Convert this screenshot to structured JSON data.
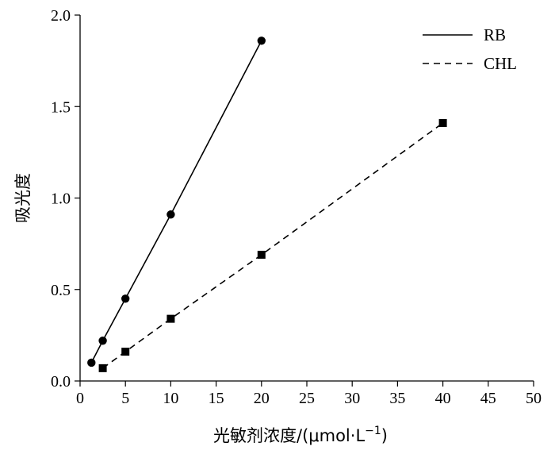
{
  "chart_data": {
    "type": "line",
    "xlabel": "光敏剂浓度/(μmol·L",
    "xlabel_sup": "−1",
    "xlabel_close": ")",
    "ylabel": "吸光度",
    "xlim": [
      0,
      50
    ],
    "ylim": [
      0.0,
      2.0
    ],
    "x_ticks": [
      0,
      5,
      10,
      15,
      20,
      25,
      30,
      35,
      40,
      45,
      50
    ],
    "x_tick_labels": [
      "0",
      "5",
      "10",
      "15",
      "20",
      "25",
      "30",
      "35",
      "40",
      "45",
      "50"
    ],
    "y_ticks": [
      0.0,
      0.5,
      1.0,
      1.5,
      2.0
    ],
    "y_tick_labels": [
      "0.0",
      "0.5",
      "1.0",
      "1.5",
      "2.0"
    ],
    "grid": false,
    "legend_position": "top-right",
    "series": [
      {
        "name": "RB",
        "line_style": "solid",
        "marker": "circle",
        "color": "#000000",
        "points": [
          {
            "x": 1.25,
            "y": 0.1
          },
          {
            "x": 2.5,
            "y": 0.22
          },
          {
            "x": 5,
            "y": 0.45
          },
          {
            "x": 10,
            "y": 0.91
          },
          {
            "x": 20,
            "y": 1.86
          }
        ]
      },
      {
        "name": "CHL",
        "line_style": "dashed",
        "marker": "square",
        "color": "#000000",
        "points": [
          {
            "x": 2.5,
            "y": 0.07
          },
          {
            "x": 5,
            "y": 0.16
          },
          {
            "x": 10,
            "y": 0.34
          },
          {
            "x": 20,
            "y": 0.69
          },
          {
            "x": 40,
            "y": 1.41
          }
        ]
      }
    ]
  }
}
